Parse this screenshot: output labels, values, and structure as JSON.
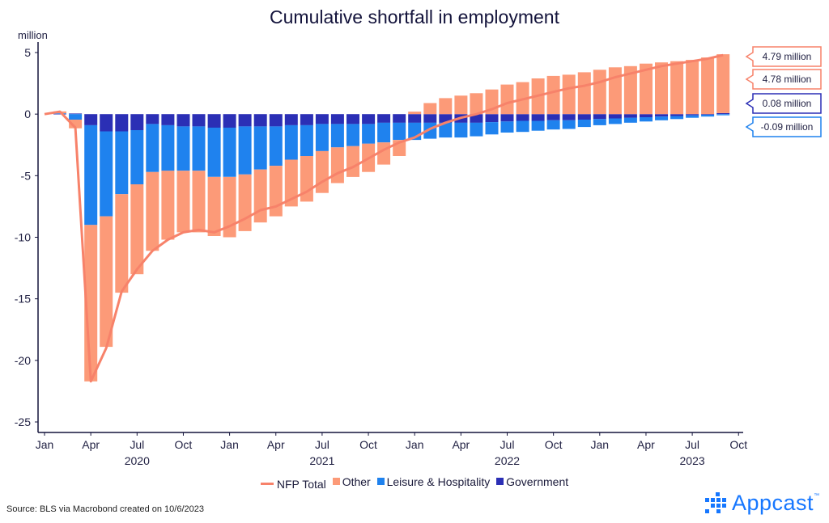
{
  "chart_data": {
    "type": "bar",
    "title": "Cumulative shortfall in employment",
    "ylabel": "million",
    "ylim": [
      -25,
      5
    ],
    "yticks": [
      5,
      0,
      -5,
      -10,
      -15,
      -20,
      -25
    ],
    "grid": false,
    "legend_position": "bottom",
    "months": [
      "2020-01",
      "2020-02",
      "2020-03",
      "2020-04",
      "2020-05",
      "2020-06",
      "2020-07",
      "2020-08",
      "2020-09",
      "2020-10",
      "2020-11",
      "2020-12",
      "2021-01",
      "2021-02",
      "2021-03",
      "2021-04",
      "2021-05",
      "2021-06",
      "2021-07",
      "2021-08",
      "2021-09",
      "2021-10",
      "2021-11",
      "2021-12",
      "2022-01",
      "2022-02",
      "2022-03",
      "2022-04",
      "2022-05",
      "2022-06",
      "2022-07",
      "2022-08",
      "2022-09",
      "2022-10",
      "2022-11",
      "2022-12",
      "2023-01",
      "2023-02",
      "2023-03",
      "2023-04",
      "2023-05",
      "2023-06",
      "2023-07",
      "2023-08",
      "2023-09"
    ],
    "x_month_labels": [
      {
        "label": "Jan",
        "m": 0
      },
      {
        "label": "Apr",
        "m": 3
      },
      {
        "label": "Jul",
        "m": 6
      },
      {
        "label": "Oct",
        "m": 9
      },
      {
        "label": "Jan",
        "m": 12
      },
      {
        "label": "Apr",
        "m": 15
      },
      {
        "label": "Jul",
        "m": 18
      },
      {
        "label": "Oct",
        "m": 21
      },
      {
        "label": "Jan",
        "m": 24
      },
      {
        "label": "Apr",
        "m": 27
      },
      {
        "label": "Jul",
        "m": 30
      },
      {
        "label": "Oct",
        "m": 33
      },
      {
        "label": "Jan",
        "m": 36
      },
      {
        "label": "Apr",
        "m": 39
      },
      {
        "label": "Jul",
        "m": 42
      },
      {
        "label": "Oct",
        "m": 45
      }
    ],
    "x_year_labels": [
      {
        "label": "2020",
        "m": 6
      },
      {
        "label": "2021",
        "m": 18
      },
      {
        "label": "2022",
        "m": 30
      },
      {
        "label": "2023",
        "m": 42
      }
    ],
    "series": [
      {
        "name": "Government",
        "color": "#2b2fb5",
        "values": [
          0,
          0.02,
          0.05,
          -0.9,
          -1.4,
          -1.4,
          -1.3,
          -0.8,
          -0.9,
          -1.0,
          -1.0,
          -1.1,
          -1.1,
          -1.0,
          -1.0,
          -1.0,
          -0.9,
          -0.9,
          -0.8,
          -0.8,
          -0.8,
          -0.8,
          -0.7,
          -0.7,
          -0.7,
          -0.7,
          -0.7,
          -0.7,
          -0.7,
          -0.65,
          -0.6,
          -0.55,
          -0.55,
          -0.5,
          -0.5,
          -0.45,
          -0.4,
          -0.35,
          -0.3,
          -0.25,
          -0.2,
          -0.15,
          -0.1,
          -0.05,
          0.08
        ]
      },
      {
        "name": "Leisure & Hospitality",
        "color": "#1f82ee",
        "values": [
          0,
          0.05,
          -0.45,
          -8.1,
          -6.9,
          -5.1,
          -4.4,
          -3.9,
          -3.7,
          -3.6,
          -3.6,
          -4.0,
          -4.0,
          -3.9,
          -3.5,
          -3.2,
          -2.8,
          -2.5,
          -2.2,
          -1.9,
          -1.8,
          -1.6,
          -1.6,
          -1.4,
          -1.4,
          -1.3,
          -1.2,
          -1.2,
          -1.1,
          -1.0,
          -0.9,
          -0.9,
          -0.8,
          -0.75,
          -0.7,
          -0.6,
          -0.5,
          -0.45,
          -0.4,
          -0.35,
          -0.3,
          -0.25,
          -0.2,
          -0.15,
          -0.09
        ]
      },
      {
        "name": "Other",
        "color": "#fc9a78",
        "values": [
          0,
          0.15,
          -0.7,
          -12.7,
          -10.6,
          -8.0,
          -7.3,
          -6.4,
          -5.6,
          -5.0,
          -5.0,
          -4.8,
          -4.9,
          -4.6,
          -4.3,
          -4.1,
          -3.8,
          -3.7,
          -3.4,
          -2.9,
          -2.5,
          -2.3,
          -1.8,
          -1.3,
          0.2,
          0.9,
          1.3,
          1.5,
          1.7,
          2.0,
          2.4,
          2.6,
          2.9,
          3.1,
          3.2,
          3.4,
          3.6,
          3.8,
          3.9,
          4.1,
          4.2,
          4.3,
          4.4,
          4.6,
          4.78
        ]
      },
      {
        "name": "NFP Total",
        "color": "#f7826a",
        "values": [
          0,
          0.2,
          -1.1,
          -21.7,
          -19.0,
          -14.4,
          -12.6,
          -11.1,
          -10.2,
          -9.6,
          -9.4,
          -9.6,
          -9.1,
          -8.5,
          -7.8,
          -7.5,
          -6.9,
          -6.3,
          -5.5,
          -4.8,
          -4.3,
          -3.6,
          -2.9,
          -2.3,
          -1.9,
          -1.2,
          -0.7,
          -0.3,
          0.0,
          0.4,
          0.9,
          1.2,
          1.5,
          1.8,
          2.1,
          2.3,
          2.6,
          3.0,
          3.3,
          3.6,
          3.9,
          4.1,
          4.3,
          4.5,
          4.79
        ]
      }
    ],
    "end_labels": [
      {
        "text": "4.79 million",
        "color": "#f7826a",
        "value": 4.79
      },
      {
        "text": "4.78 million",
        "color": "#f7826a",
        "value": 4.78
      },
      {
        "text": "0.08 million",
        "color": "#2b2fb5",
        "value": 0.08
      },
      {
        "text": "-0.09 million",
        "color": "#1f82ee",
        "value": -0.09
      }
    ]
  },
  "legend": {
    "total": "NFP Total",
    "other": "Other",
    "leisure": "Leisure & Hospitality",
    "gov": "Government"
  },
  "colors": {
    "other": "#fc9a78",
    "leisure": "#1f82ee",
    "gov": "#2b2fb5",
    "total": "#f7826a"
  },
  "source": "Source: BLS via Macrobond created on 10/6/2023",
  "logo": {
    "text": "Appcast",
    "tm": "™"
  }
}
